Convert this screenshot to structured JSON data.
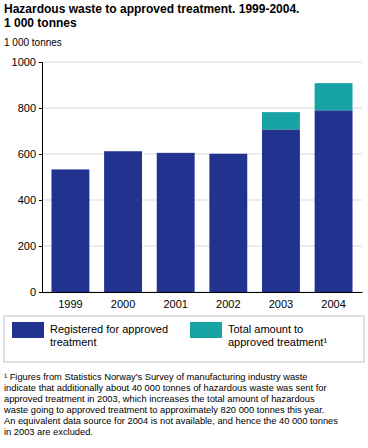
{
  "chart_data": {
    "type": "bar",
    "title": "Hazardous waste to approved treatment. 1999-2004.",
    "subtitle": "1 000 tonnes",
    "y_label": "1 000 tonnes",
    "categories": [
      "1999",
      "2000",
      "2001",
      "2002",
      "2003",
      "2004"
    ],
    "series": [
      {
        "name": "Registered for approved treatment",
        "color": "#22338f",
        "values": [
          533,
          612,
          605,
          601,
          707,
          790
        ]
      },
      {
        "name": "Total amount to approved treatment¹",
        "color": "#17a3a3",
        "values": [
          null,
          null,
          null,
          null,
          75,
          118
        ]
      }
    ],
    "stacked": true,
    "ylim": [
      0,
      1000
    ],
    "yticks": [
      0,
      200,
      400,
      600,
      800,
      1000
    ],
    "grid": true,
    "legend": "bottom",
    "annotations": [
      "¹ Figures from Statistics Norway's Survey of manufacturing industry waste",
      "indicate that additionally about 40 000 tonnes of hazardous waste was sent for",
      "approved treatment in 2003, which increases the total amount of hazardous",
      "waste going to approved treatment to approximately 820 000 tonnes this year.",
      "An equivalent data source for 2004 is not available, and hence the 40 000 tonnes",
      "in 2003 are excluded."
    ]
  }
}
